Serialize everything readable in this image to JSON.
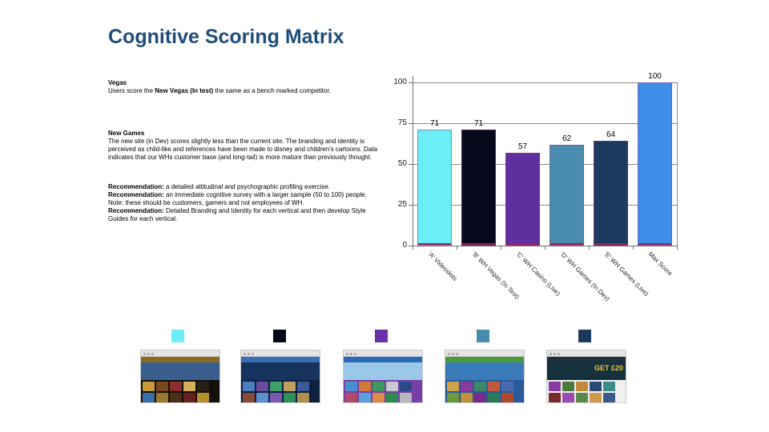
{
  "slide": {
    "title": "Cognitive Scoring Matrix"
  },
  "notes": {
    "vegas": {
      "heading": "Vegas",
      "body_pre": "Users score the ",
      "body_bold": "New Vegas (In test)",
      "body_post": " the same as a bench marked competitor."
    },
    "newgames": {
      "heading": "New Games",
      "body": "The new site (in Dev) scores slightly less than the current site. The branding and identity is perceived as child-like and references have been made to disney and children's cartoons. Data indicates that our WHs customer base (and long-tail) is more mature than previously thought."
    },
    "recommendations": [
      {
        "label": "Recommendation:",
        "text": " a detailed attitudinal and psychographic profiling exercise."
      },
      {
        "label": "Recommendation:",
        "text": " an immediate cognitive survey with a larger sample (50 to 100) people. Note: these should be customers, gamers and not employees of WH."
      },
      {
        "label": "Recommendation:",
        "text": " Detailed Branding and Identity for each vertical and then develop Style Guides for each vertical."
      }
    ]
  },
  "chart_data": {
    "type": "bar",
    "title": "",
    "xlabel": "",
    "ylabel": "",
    "categories": [
      "'A' Videoslots",
      "'B' WH Vegas (In Test)",
      "'C' WH Casino (Live)",
      "'D' WH Games (In Dev)",
      "'E' WH Games (Live)",
      "Max Score"
    ],
    "values": [
      71,
      71,
      57,
      62,
      64,
      100
    ],
    "bar_colors": [
      "#6ceef8",
      "#07081c",
      "#5e2f9e",
      "#4a8cae",
      "#1b3a5e",
      "#3f8fea"
    ],
    "bar_outline": "#9e1f63",
    "ylim": [
      0,
      100
    ],
    "yticks": [
      0,
      25,
      50,
      75,
      100
    ],
    "grid": true,
    "legend": "none",
    "value_labels": true,
    "xtick_rotation_deg": 45
  },
  "legend": {
    "swatches": [
      {
        "name": "videoslots",
        "color": "#6ceef8"
      },
      {
        "name": "wh-vegas-in-test",
        "color": "#06081a"
      },
      {
        "name": "wh-casino-live",
        "color": "#6633a8"
      },
      {
        "name": "wh-games-in-dev",
        "color": "#4a8cae"
      },
      {
        "name": "wh-games-live",
        "color": "#1c3a5e"
      }
    ]
  },
  "thumbnails": [
    {
      "name": "videoslots-site-screenshot",
      "header": "#8a6a24",
      "body": "#15100a",
      "hero": "#3a5f8e",
      "label": "",
      "tiles": [
        "#c99a3a",
        "#7a4a1e",
        "#8b2f2f",
        "#d4b05a",
        "#262016",
        "#3a6ea8",
        "#9a7a2a",
        "#4a3014",
        "#6b1f1f",
        "#b8902a",
        "#1a140c",
        "#2a4a78"
      ]
    },
    {
      "name": "wh-vegas-in-test-site-screenshot",
      "header": "#3a6fb5",
      "body": "#0e2140",
      "hero": "#16335e",
      "label": "",
      "tiles": [
        "#4a7fc0",
        "#6a4aa0",
        "#3fa06a",
        "#c0a05a",
        "#3a5a9a",
        "#8a4a3a",
        "#5a8fd0",
        "#7a5ab0",
        "#2f905a",
        "#b0904a",
        "#2a4a8a",
        "#9a5a4a"
      ]
    },
    {
      "name": "wh-casino-live-site-screenshot",
      "header": "#2a6ab5",
      "body": "#7a3fa8",
      "hero": "#9ac8e8",
      "label": "",
      "tiles": [
        "#4a90d0",
        "#d07a3a",
        "#3a9a5a",
        "#c8c8d0",
        "#2a4a8a",
        "#b04a6a",
        "#5aa0e0",
        "#e08a4a",
        "#2a8a4a",
        "#b8b8c0",
        "#1a3a7a",
        "#a03a5a"
      ]
    },
    {
      "name": "wh-games-in-dev-site-screenshot",
      "header": "#4a9a3a",
      "body": "#2a5a9a",
      "hero": "#3a7ab8",
      "label": "",
      "tiles": [
        "#d0a04a",
        "#8a3a9a",
        "#3a8a6a",
        "#c05a3a",
        "#4a6ab0",
        "#6a9a3a",
        "#c0903a",
        "#7a2a8a",
        "#2a7a5a",
        "#b04a2a",
        "#3a5aa0",
        "#5a8a2a"
      ]
    },
    {
      "name": "wh-games-live-site-screenshot",
      "header": "#1d2f3a",
      "body": "#f0f0f0",
      "hero": "#15313d",
      "label": "GET £20",
      "tiles": [
        "#8a3aa0",
        "#4a7a3a",
        "#c0883a",
        "#2a4a7a",
        "#3a8a8a",
        "#7a2a2a",
        "#9a4ab0",
        "#5a8a4a",
        "#d0984a",
        "#3a5a8a",
        "#2a7a7a",
        "#8a3a3a"
      ]
    }
  ]
}
